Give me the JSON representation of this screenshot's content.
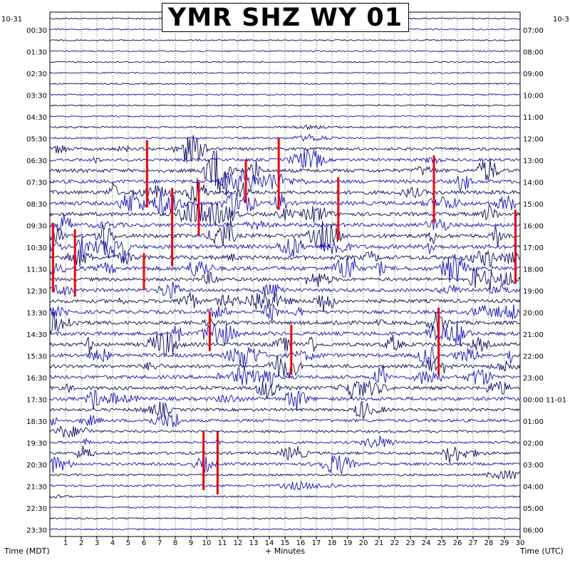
{
  "title": "YMR SHZ WY 01",
  "date_left": "10-31",
  "date_right": "10-3",
  "left_axis_label": "Time (MDT)",
  "right_axis_label": "Time (UTC)",
  "x_axis_label": "+ Minutes",
  "colors": {
    "trace_dark": "#0a0a6e",
    "trace_blue": "#1010e0",
    "event": "#ff0000",
    "grid": "#000000"
  },
  "chart_data": {
    "type": "line",
    "title": "YMR SHZ WY 01",
    "xlabel": "+ Minutes",
    "ylabel_left": "Time (MDT)",
    "ylabel_right": "Time (UTC)",
    "xlim": [
      0,
      30
    ],
    "x_ticks": [
      "1",
      "2",
      "3",
      "4",
      "5",
      "6",
      "7",
      "8",
      "9",
      "10",
      "11",
      "12",
      "13",
      "14",
      "15",
      "16",
      "17",
      "18",
      "19",
      "20",
      "21",
      "22",
      "23",
      "24",
      "25",
      "26",
      "27",
      "28",
      "29",
      "30"
    ],
    "left_ticks": [
      "00:30",
      "01:30",
      "02:30",
      "03:30",
      "04:30",
      "05:30",
      "06:30",
      "07:30",
      "08:30",
      "09:30",
      "10:30",
      "11:30",
      "12:30",
      "13:30",
      "14:30",
      "15:30",
      "16:30",
      "17:30",
      "18:30",
      "19:30",
      "20:30",
      "21:30",
      "22:30",
      "23:30"
    ],
    "right_ticks": [
      "07:00",
      "08:00",
      "09:00",
      "10:00",
      "11:00",
      "12:00",
      "13:00",
      "14:00",
      "15:00",
      "16:00",
      "17:00",
      "18:00",
      "19:00",
      "20:00",
      "21:00",
      "22:00",
      "23:00",
      "00:00 11-01",
      "01:00",
      "02:00",
      "03:00",
      "04:00",
      "05:00",
      "06:00"
    ],
    "rows_per_hour": 2,
    "activity_level_by_hour": [
      0.08,
      0.07,
      0.07,
      0.07,
      0.08,
      0.2,
      0.55,
      0.75,
      0.85,
      0.8,
      0.9,
      0.95,
      0.7,
      0.75,
      0.8,
      0.8,
      0.75,
      0.75,
      0.55,
      0.4,
      0.5,
      0.3,
      0.15,
      0.1
    ],
    "events": [
      {
        "minute": 6.2,
        "start_hour": 5.6,
        "end_hour": 8.7
      },
      {
        "minute": 7.8,
        "start_hour": 7.8,
        "end_hour": 11.4
      },
      {
        "minute": 9.5,
        "start_hour": 7.5,
        "end_hour": 10.0
      },
      {
        "minute": 12.5,
        "start_hour": 6.5,
        "end_hour": 8.5
      },
      {
        "minute": 14.6,
        "start_hour": 5.5,
        "end_hour": 8.8
      },
      {
        "minute": 18.4,
        "start_hour": 7.3,
        "end_hour": 10.2
      },
      {
        "minute": 24.5,
        "start_hour": 6.3,
        "end_hour": 9.4
      },
      {
        "minute": 29.7,
        "start_hour": 8.8,
        "end_hour": 12.2
      },
      {
        "minute": 0.2,
        "start_hour": 9.4,
        "end_hour": 12.6
      },
      {
        "minute": 1.6,
        "start_hour": 9.7,
        "end_hour": 12.8
      },
      {
        "minute": 6.0,
        "start_hour": 10.8,
        "end_hour": 12.5
      },
      {
        "minute": 10.2,
        "start_hour": 13.5,
        "end_hour": 15.3
      },
      {
        "minute": 15.4,
        "start_hour": 14.1,
        "end_hour": 16.4
      },
      {
        "minute": 24.8,
        "start_hour": 13.3,
        "end_hour": 16.4
      },
      {
        "minute": 9.8,
        "start_hour": 19.0,
        "end_hour": 21.7
      },
      {
        "minute": 10.7,
        "start_hour": 19.0,
        "end_hour": 21.9
      }
    ]
  }
}
